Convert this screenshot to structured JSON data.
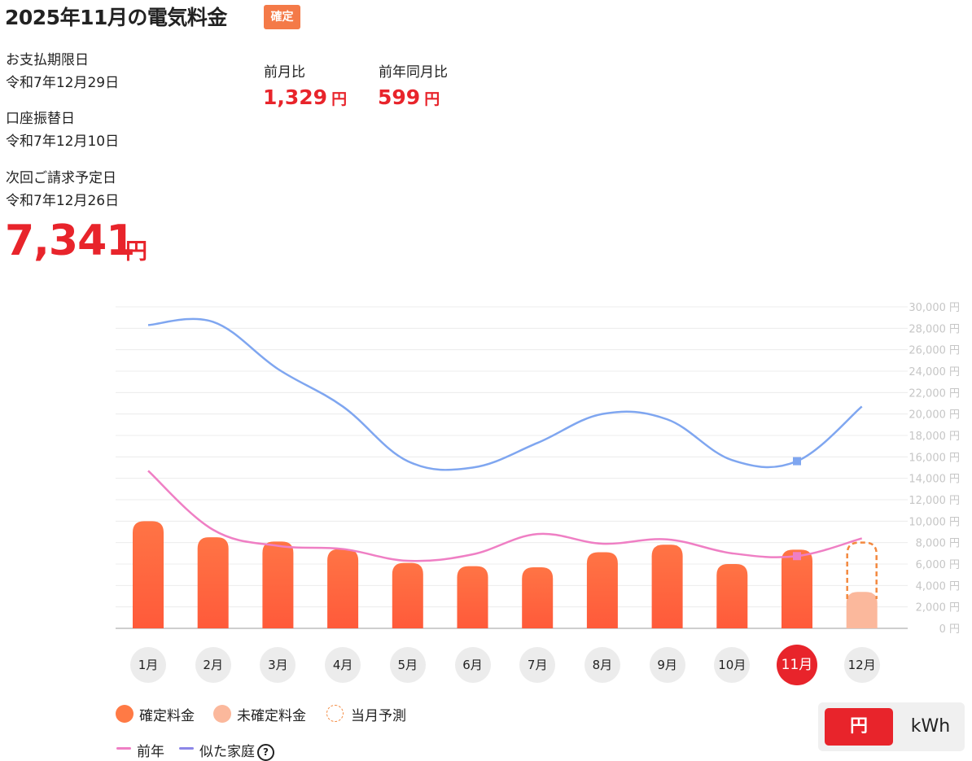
{
  "header": {
    "title": "2025年11月の電気料金",
    "badge": "確定"
  },
  "details": [
    {
      "label": "お支払期限日",
      "value": "令和7年12月29日"
    },
    {
      "label": "口座振替日",
      "value": "令和7年12月10日"
    },
    {
      "label": "次回ご請求予定日",
      "value": "令和7年12月26日"
    }
  ],
  "total": {
    "amount": "7,341",
    "unit": "円"
  },
  "comparison": [
    {
      "label": "前月比",
      "value": "1,329",
      "unit": "円"
    },
    {
      "label": "前年同月比",
      "value": "599",
      "unit": "円"
    }
  ],
  "chart_data": {
    "type": "bar",
    "categories": [
      "1月",
      "2月",
      "3月",
      "4月",
      "5月",
      "6月",
      "7月",
      "8月",
      "9月",
      "10月",
      "11月",
      "12月"
    ],
    "selected_category": "11月",
    "ylim": [
      0,
      30000
    ],
    "y_ticks": [
      "0 円",
      "2,000 円",
      "4,000 円",
      "6,000 円",
      "8,000 円",
      "10,000 円",
      "12,000 円",
      "14,000 円",
      "16,000 円",
      "18,000 円",
      "20,000 円",
      "22,000 円",
      "24,000 円",
      "26,000 円",
      "28,000 円",
      "30,000 円"
    ],
    "series": [
      {
        "name": "確定料金",
        "kind": "bar",
        "color": "#ff6a3d",
        "values": [
          10000,
          8500,
          8100,
          7400,
          6100,
          5800,
          5700,
          7100,
          7800,
          6000,
          7341,
          null
        ]
      },
      {
        "name": "未確定料金",
        "kind": "bar",
        "color": "#fbb89c",
        "values": [
          null,
          null,
          null,
          null,
          null,
          null,
          null,
          null,
          null,
          null,
          null,
          3400
        ]
      },
      {
        "name": "当月予測",
        "kind": "forecast",
        "color": "#f3893f",
        "values": [
          null,
          null,
          null,
          null,
          null,
          null,
          null,
          null,
          null,
          null,
          null,
          8000
        ]
      },
      {
        "name": "前年",
        "kind": "line",
        "color": "#ef7fc4",
        "values": [
          14700,
          9200,
          7700,
          7400,
          6300,
          6900,
          8800,
          7900,
          8300,
          7000,
          6742,
          8400
        ]
      },
      {
        "name": "似た家庭",
        "kind": "line",
        "color": "#7fa6f0",
        "values": [
          28300,
          28600,
          24200,
          20700,
          15600,
          15000,
          17300,
          20000,
          19500,
          15700,
          15600,
          20700
        ]
      }
    ],
    "grid": true
  },
  "legend": {
    "confirmed": "確定料金",
    "unconfirmed": "未確定料金",
    "forecast": "当月予測",
    "prev_year": "前年",
    "similar": "似た家庭",
    "help_icon": "?"
  },
  "unit_toggle": {
    "yen": "円",
    "kwh": "kWh",
    "selected": "円"
  },
  "colors": {
    "accent": "#e8242b",
    "badge": "#f47a48"
  }
}
